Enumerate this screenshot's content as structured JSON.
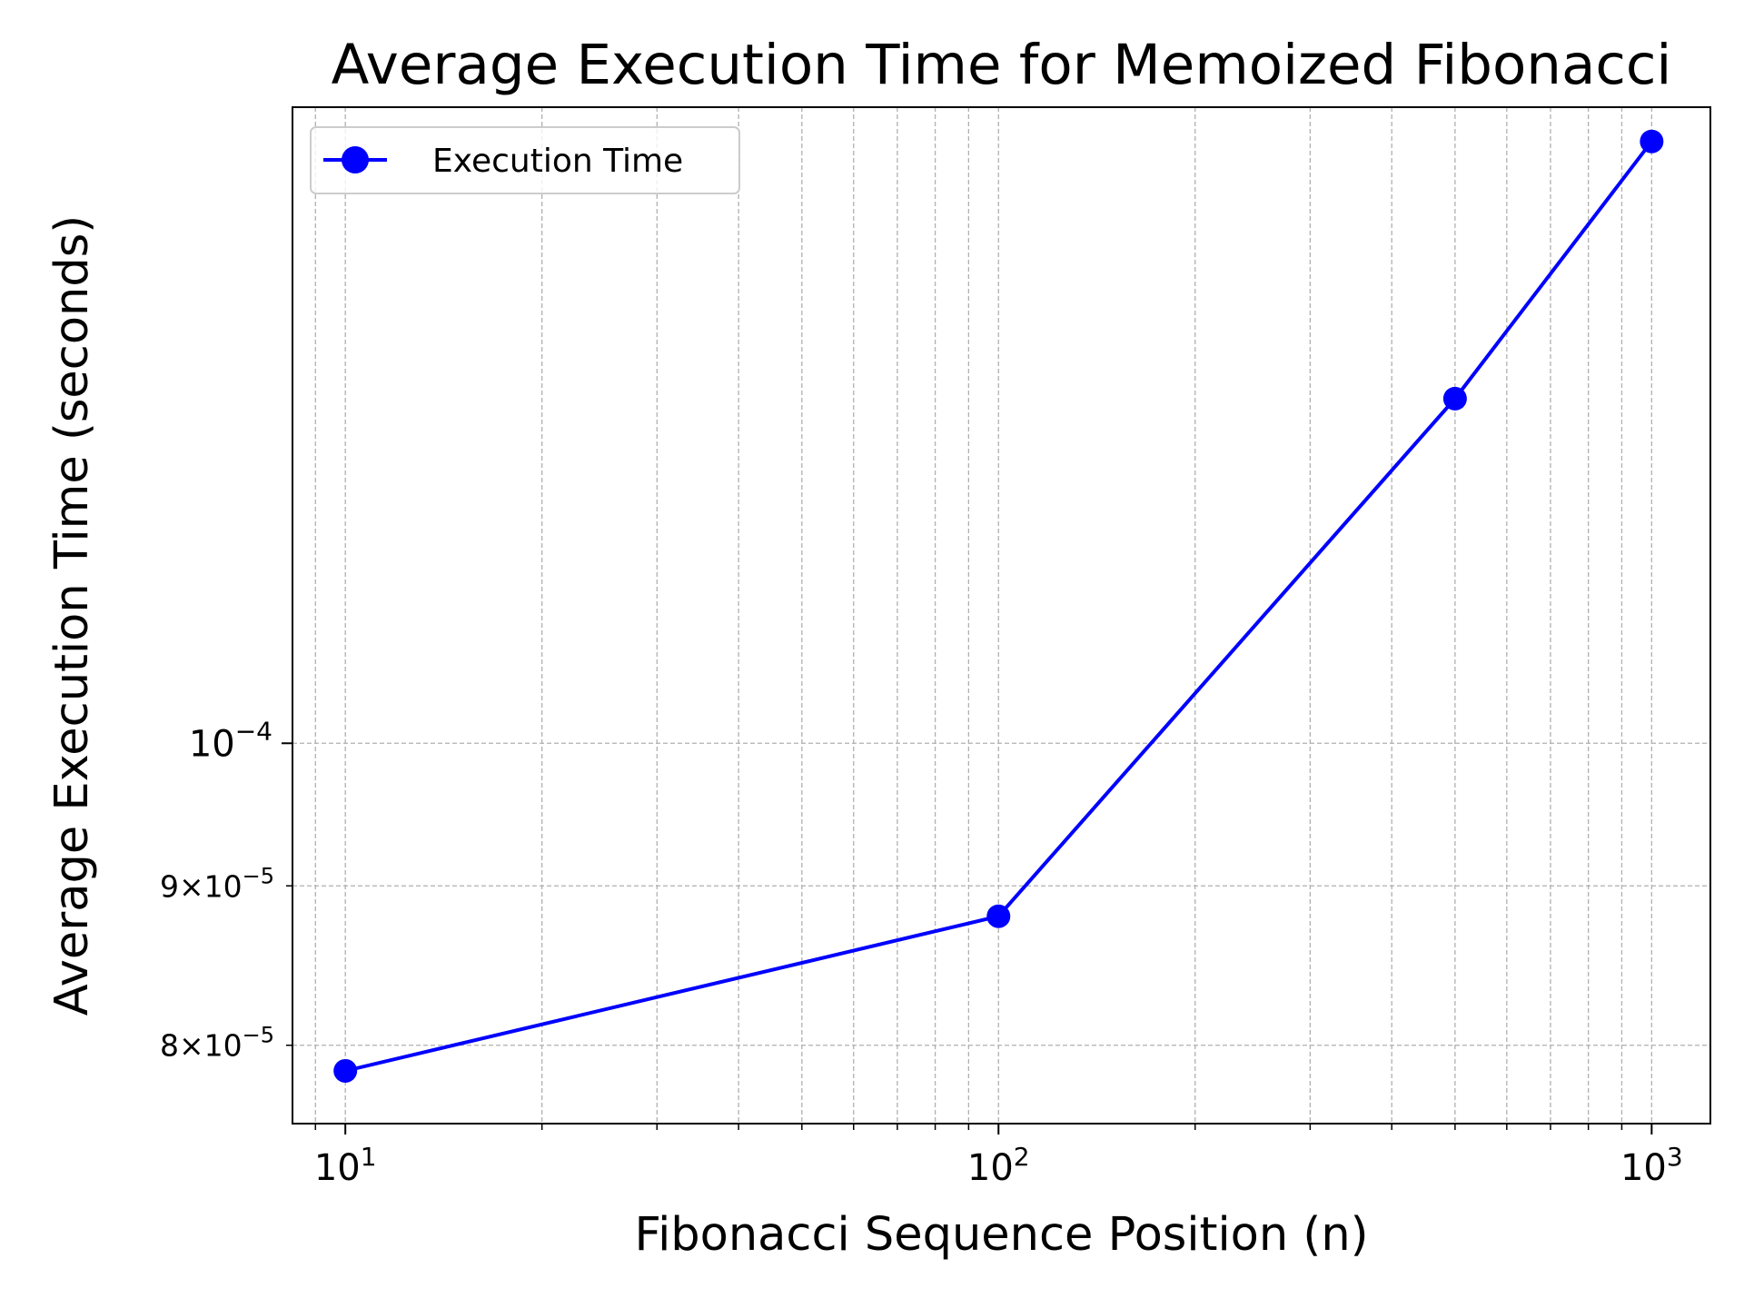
{
  "chart_data": {
    "type": "line",
    "title": "Average Execution Time for Memoized Fibonacci",
    "xlabel": "Fibonacci Sequence Position (n)",
    "ylabel": "Average Execution Time (seconds)",
    "x_scale": "log",
    "y_scale": "log",
    "xlim": [
      8.3,
      1230
    ],
    "ylim": [
      7.55e-05,
      0.00016
    ],
    "grid": true,
    "grid_style": "dashed",
    "legend_position": "upper-left",
    "x_ticks": [
      {
        "value": 10,
        "base": "10",
        "exp": "1"
      },
      {
        "value": 100,
        "base": "10",
        "exp": "2"
      },
      {
        "value": 1000,
        "base": "10",
        "exp": "3"
      }
    ],
    "y_major_ticks": [
      {
        "value": 0.0001,
        "base": "10",
        "exp": "−4"
      }
    ],
    "y_minor_ticks": [
      {
        "value": 8e-05,
        "mant": "8",
        "times": "×",
        "base": "10",
        "exp": "−5"
      },
      {
        "value": 9e-05,
        "mant": "9",
        "times": "×",
        "base": "10",
        "exp": "−5"
      }
    ],
    "series": [
      {
        "name": "Execution Time",
        "color": "#0000ff",
        "marker": "circle",
        "x": [
          10,
          100,
          500,
          1000
        ],
        "y": [
          7.85e-05,
          8.8e-05,
          0.000129,
          0.000156
        ]
      }
    ]
  }
}
